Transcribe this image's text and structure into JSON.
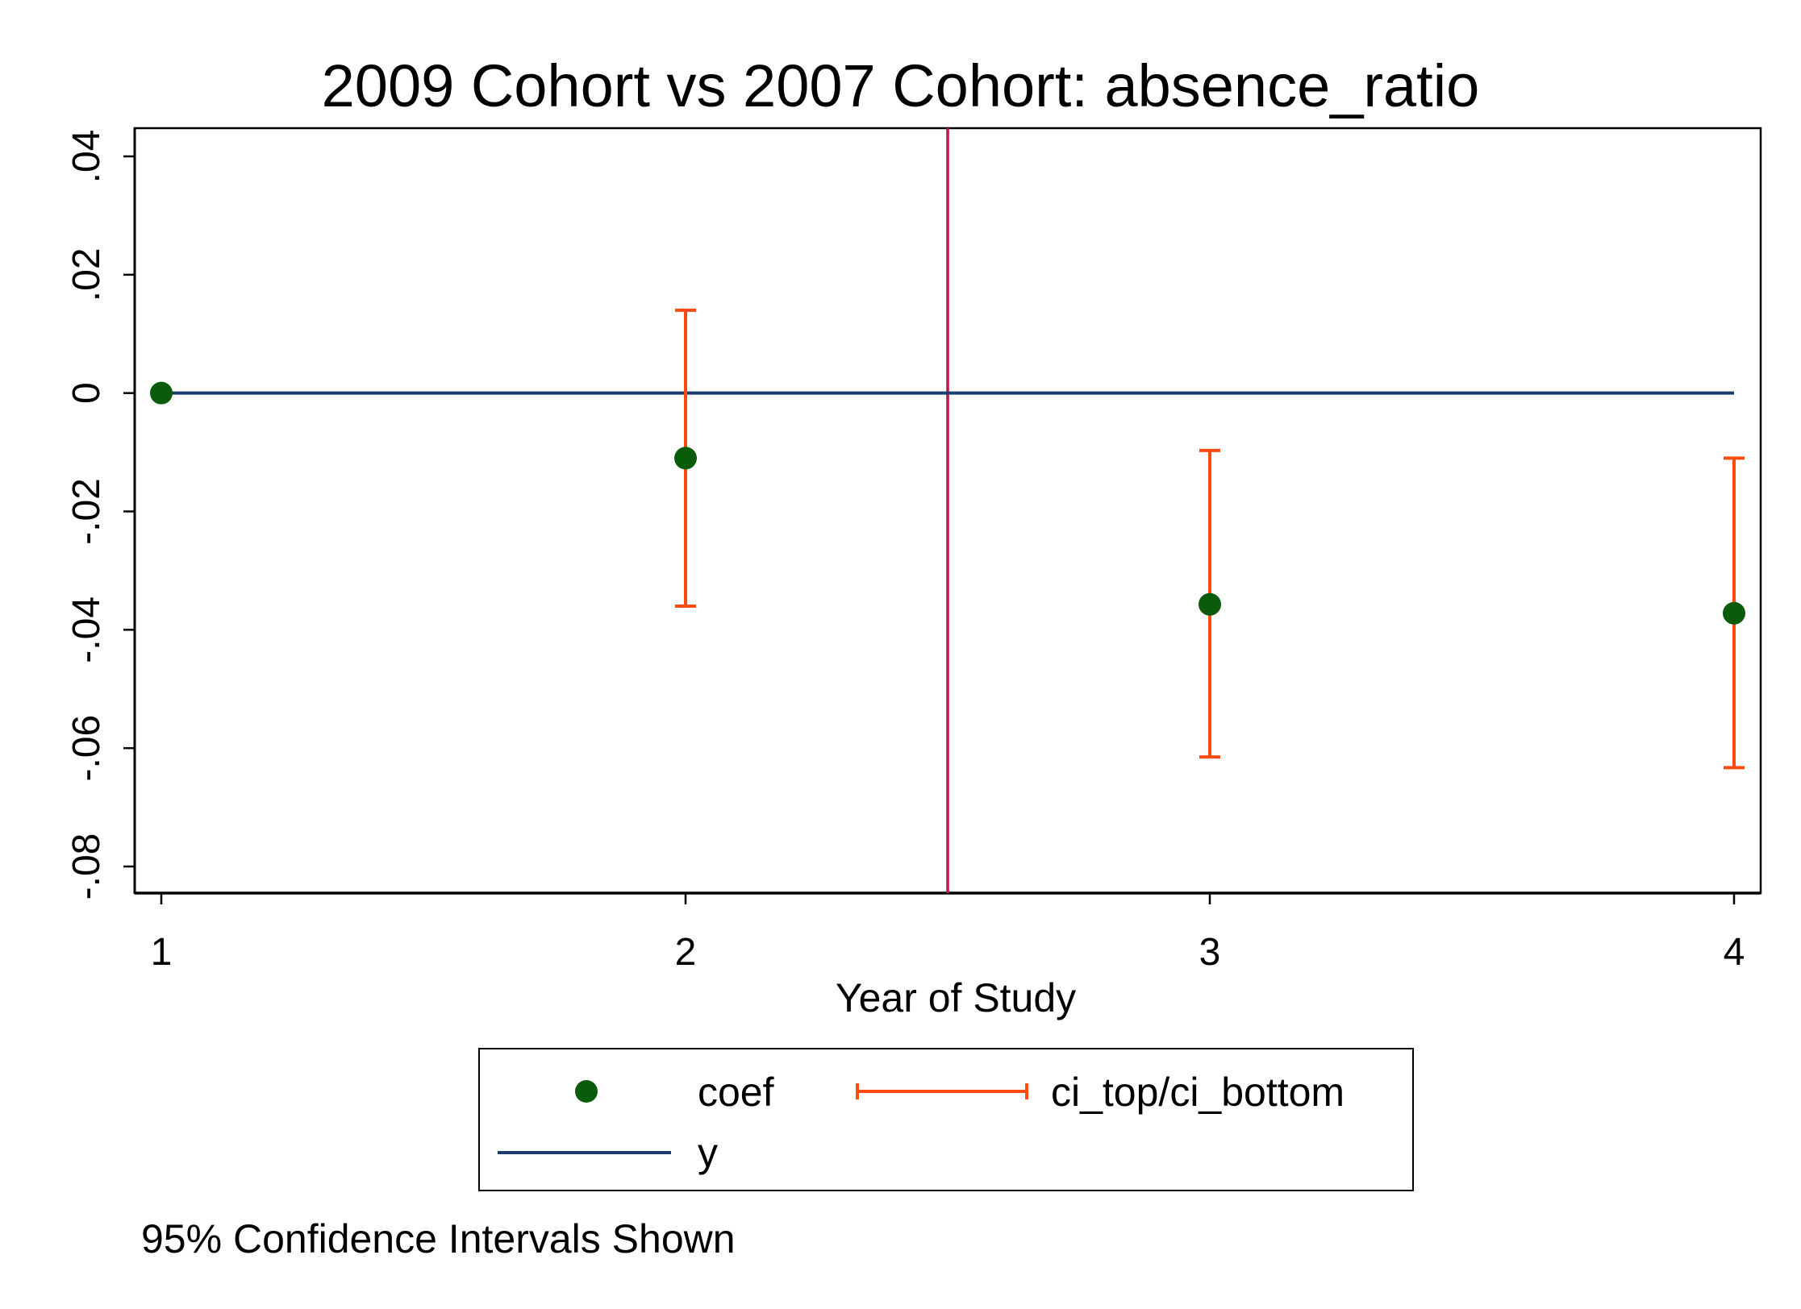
{
  "chart_data": {
    "type": "scatter",
    "title": "2009 Cohort vs 2007 Cohort: absence_ratio",
    "xlabel": "Year of Study",
    "ylabel": "",
    "xlim": [
      1,
      4
    ],
    "ylim": [
      -0.08,
      0.04
    ],
    "x_ticks": [
      1,
      2,
      3,
      4
    ],
    "x_tick_labels": [
      "1",
      "2",
      "3",
      "4"
    ],
    "y_ticks": [
      0.04,
      0.02,
      0,
      -0.02,
      -0.04,
      -0.06,
      -0.08
    ],
    "y_tick_labels": [
      ".04",
      ".02",
      "0",
      "-.02",
      "-.04",
      "-.06",
      "-.08"
    ],
    "grid": false,
    "vertical_reference_line": 2.5,
    "legend_position": "bottom",
    "series": [
      {
        "name": "coef",
        "type": "scatter",
        "x": [
          1,
          2,
          3,
          4
        ],
        "values": [
          0,
          -0.011,
          -0.0357,
          -0.0372
        ]
      },
      {
        "name": "ci_top/ci_bottom",
        "type": "errorbar",
        "x": [
          2,
          3,
          4
        ],
        "ci_top": [
          0.014,
          -0.0097,
          -0.011
        ],
        "ci_bottom": [
          -0.036,
          -0.0615,
          -0.0633
        ]
      },
      {
        "name": "y",
        "type": "line",
        "x": [
          1,
          4
        ],
        "values": [
          0,
          0
        ]
      }
    ],
    "colors": {
      "coef": "#0a5c0a",
      "ci": "#ff4a10",
      "y": "#1a3d6e",
      "reference_line": "#c0154a",
      "axes": "#000000"
    }
  },
  "legend": {
    "coef": "coef",
    "ci": "ci_top/ci_bottom",
    "y": "y"
  },
  "note": "95% Confidence Intervals Shown"
}
